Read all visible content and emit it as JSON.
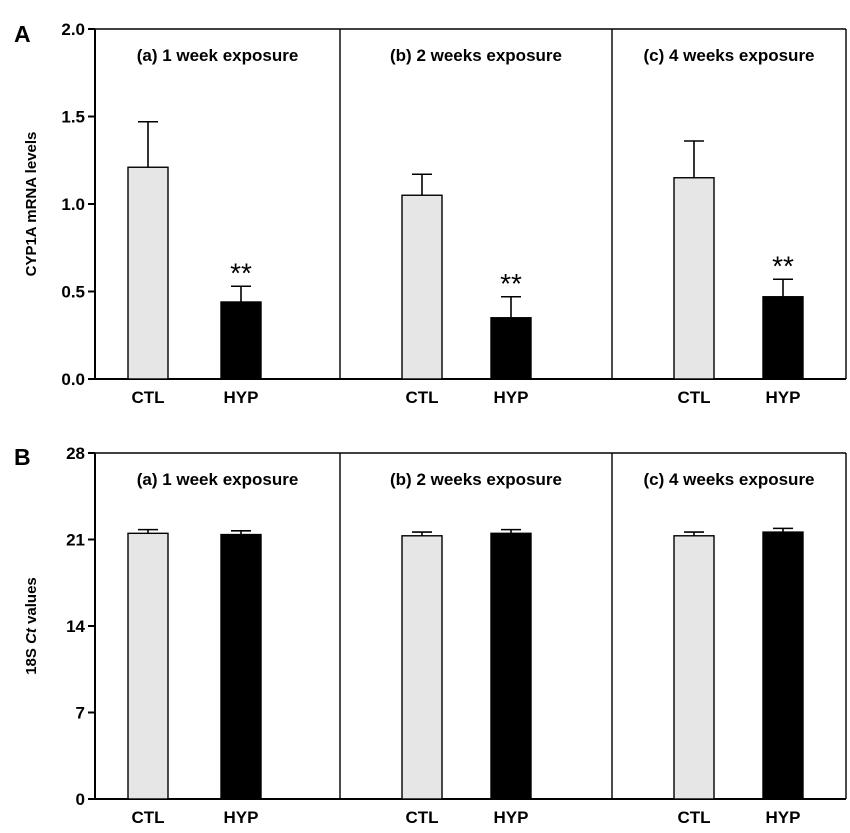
{
  "chart_data": [
    {
      "panel_label": "A",
      "type": "bar",
      "ylabel": "CYP1A mRNA levels",
      "ylim": [
        0,
        2.0
      ],
      "yticks": [
        "0.0",
        "0.5",
        "1.0",
        "1.5",
        "2.0"
      ],
      "ytick_values": [
        0,
        0.5,
        1.0,
        1.5,
        2.0
      ],
      "categories": [
        "CTL",
        "HYP"
      ],
      "bar_colors": [
        "#e6e6e6",
        "#000000"
      ],
      "grid": false,
      "legend": "none",
      "subplots": [
        {
          "title": "(a) 1 week exposure",
          "values": [
            1.21,
            0.44
          ],
          "errors": [
            0.26,
            0.09
          ],
          "annotations": [
            "",
            "**"
          ]
        },
        {
          "title": "(b) 2 weeks exposure",
          "values": [
            1.05,
            0.35
          ],
          "errors": [
            0.12,
            0.12
          ],
          "annotations": [
            "",
            "**"
          ]
        },
        {
          "title": "(c) 4 weeks exposure",
          "values": [
            1.15,
            0.47
          ],
          "errors": [
            0.21,
            0.1
          ],
          "annotations": [
            "",
            "**"
          ]
        }
      ]
    },
    {
      "panel_label": "B",
      "type": "bar",
      "ylabel_parts": [
        "18S ",
        "Ct",
        " values"
      ],
      "ylim": [
        0,
        28
      ],
      "yticks": [
        "0",
        "7",
        "14",
        "21",
        "28"
      ],
      "ytick_values": [
        0,
        7,
        14,
        21,
        28
      ],
      "categories": [
        "CTL",
        "HYP"
      ],
      "bar_colors": [
        "#e6e6e6",
        "#000000"
      ],
      "grid": false,
      "legend": "none",
      "subplots": [
        {
          "title": "(a) 1 week exposure",
          "values": [
            21.5,
            21.4
          ],
          "errors": [
            0.3,
            0.3
          ],
          "annotations": [
            "",
            ""
          ]
        },
        {
          "title": "(b) 2 weeks exposure",
          "values": [
            21.3,
            21.5
          ],
          "errors": [
            0.3,
            0.3
          ],
          "annotations": [
            "",
            ""
          ]
        },
        {
          "title": "(c) 4 weeks exposure",
          "values": [
            21.3,
            21.6
          ],
          "errors": [
            0.3,
            0.3
          ],
          "annotations": [
            "",
            ""
          ]
        }
      ]
    }
  ]
}
